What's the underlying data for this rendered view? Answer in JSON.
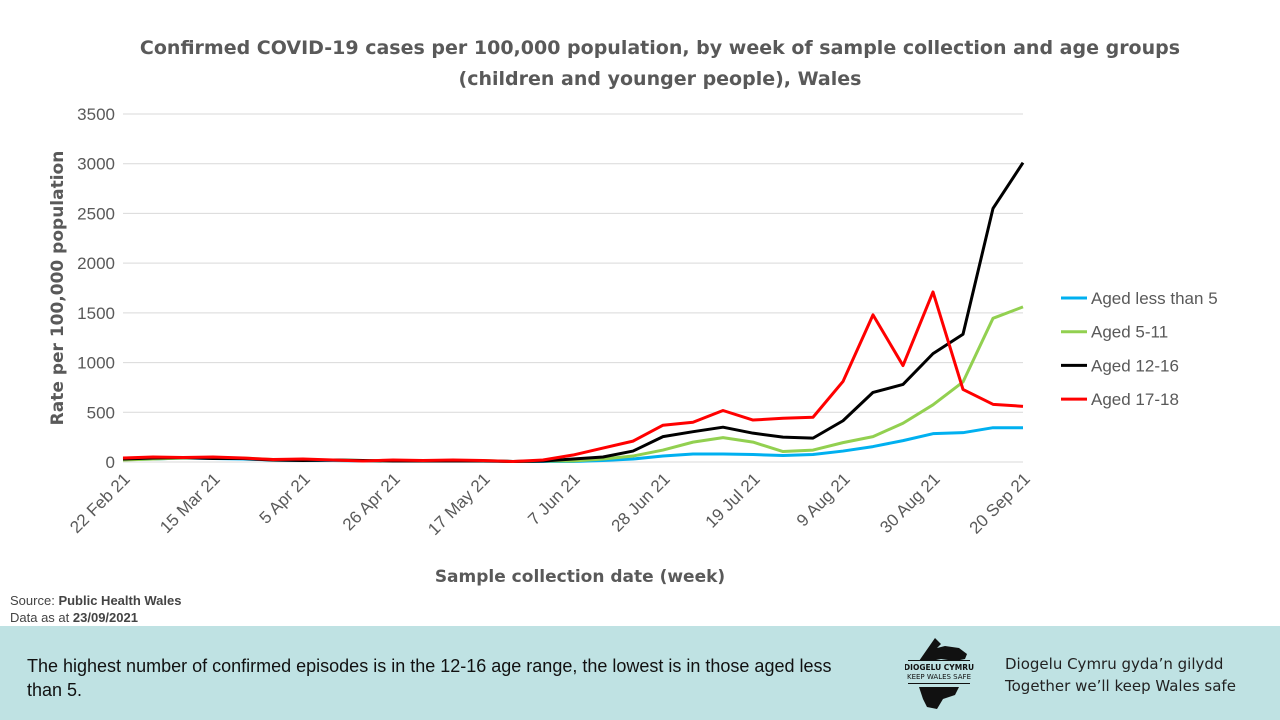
{
  "chart_data": {
    "type": "line",
    "title": "Confirmed COVID-19 cases per 100,000 population, by week of sample collection and age groups (children and younger people), Wales",
    "xlabel": "Sample collection date (week)",
    "ylabel": "Rate per 100,000 population",
    "ylim": [
      0,
      3500
    ],
    "yticks": [
      0,
      500,
      1000,
      1500,
      2000,
      2500,
      3000,
      3500
    ],
    "x": [
      "22 Feb 21",
      "1 Mar 21",
      "8 Mar 21",
      "15 Mar 21",
      "22 Mar 21",
      "29 Mar 21",
      "5 Apr 21",
      "12 Apr 21",
      "19 Apr 21",
      "26 Apr 21",
      "3 May 21",
      "10 May 21",
      "17 May 21",
      "24 May 21",
      "31 May 21",
      "7 Jun 21",
      "14 Jun 21",
      "21 Jun 21",
      "28 Jun 21",
      "5 Jul 21",
      "12 Jul 21",
      "19 Jul 21",
      "26 Jul 21",
      "2 Aug 21",
      "9 Aug 21",
      "16 Aug 21",
      "23 Aug 21",
      "30 Aug 21",
      "6 Sep 21",
      "13 Sep 21",
      "20 Sep 21"
    ],
    "xtick_labels": [
      "22 Feb 21",
      "15 Mar 21",
      "5 Apr 21",
      "26 Apr 21",
      "17 May 21",
      "7 Jun 21",
      "28 Jun 21",
      "19 Jul 21",
      "9 Aug 21",
      "30 Aug 21",
      "20 Sep 21"
    ],
    "grid": true,
    "legend_position": "right",
    "series": [
      {
        "name": "Aged less than 5",
        "color": "#00b0f0",
        "values": [
          25,
          30,
          40,
          35,
          30,
          20,
          15,
          15,
          10,
          10,
          10,
          10,
          10,
          5,
          5,
          5,
          15,
          30,
          60,
          80,
          80,
          75,
          65,
          75,
          110,
          155,
          215,
          285,
          295,
          345,
          345
        ]
      },
      {
        "name": "Aged 5-11",
        "color": "#92d050",
        "values": [
          20,
          30,
          40,
          40,
          40,
          25,
          20,
          20,
          15,
          10,
          10,
          15,
          15,
          5,
          10,
          10,
          30,
          60,
          120,
          200,
          245,
          200,
          105,
          120,
          195,
          255,
          390,
          575,
          805,
          1445,
          1560
        ]
      },
      {
        "name": "Aged 12-16",
        "color": "#000000",
        "values": [
          30,
          40,
          45,
          35,
          35,
          20,
          15,
          20,
          15,
          10,
          10,
          10,
          10,
          5,
          10,
          30,
          50,
          110,
          255,
          305,
          350,
          290,
          250,
          240,
          415,
          700,
          780,
          1090,
          1285,
          2550,
          3010
        ]
      },
      {
        "name": "Aged 17-18",
        "color": "#ff0000",
        "values": [
          40,
          50,
          45,
          50,
          40,
          25,
          30,
          20,
          10,
          20,
          15,
          20,
          15,
          5,
          20,
          70,
          140,
          210,
          370,
          400,
          518,
          422,
          440,
          450,
          810,
          1480,
          970,
          1710,
          730,
          580,
          560
        ]
      }
    ]
  },
  "source": {
    "label": "Source:",
    "value": "Public Health Wales",
    "date_label": "Data as at",
    "date": "23/09/2021"
  },
  "footer": {
    "note": "The highest number  of confirmed episodes is in the 12-16 age range, the lowest is in those aged less than 5.",
    "logo_text": [
      "DIOGELU CYMRU",
      "KEEP WALES SAFE"
    ],
    "slogan_welsh": "Diogelu Cymru gyda’n gilydd",
    "slogan_english": "Together we’ll keep Wales safe"
  }
}
